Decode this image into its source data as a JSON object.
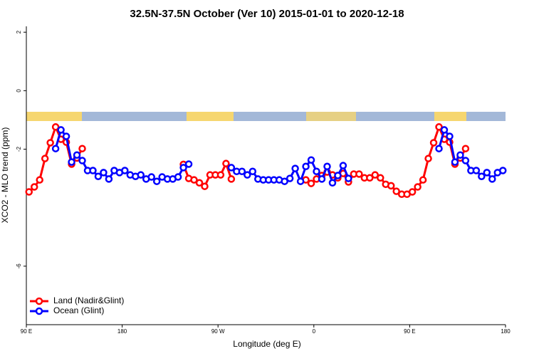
{
  "chart_data": {
    "type": "line",
    "title": "32.5N-37.5N October (Ver 10)   2015-01-01 to 2020-12-18",
    "x_label": "Longitude (deg E)",
    "y_label": "XCO2 - MLO trend (ppm)",
    "x": [
      92.5,
      97.5,
      102.5,
      107.5,
      112.5,
      117.5,
      122.5,
      127.5,
      132.5,
      137.5,
      142.5,
      147.5,
      152.5,
      157.5,
      162.5,
      167.5,
      172.5,
      177.5,
      182.5,
      187.5,
      192.5,
      197.5,
      202.5,
      207.5,
      212.5,
      217.5,
      222.5,
      227.5,
      232.5,
      237.5,
      242.5,
      247.5,
      252.5,
      257.5,
      262.5,
      267.5,
      272.5,
      277.5,
      282.5,
      287.5,
      292.5,
      297.5,
      302.5,
      307.5,
      312.5,
      317.5,
      322.5,
      327.5,
      332.5,
      337.5,
      342.5,
      347.5,
      352.5,
      357.5,
      362.5,
      367.5,
      372.5,
      377.5,
      382.5,
      387.5,
      392.5,
      397.5,
      402.5,
      407.5,
      412.5,
      417.5,
      422.5,
      427.5,
      432.5,
      437.5,
      442.5,
      447.5,
      452.5,
      457.5,
      462.5,
      467.5,
      472.5,
      477.5,
      482.5,
      487.5,
      492.5,
      497.5,
      502.5,
      507.5,
      512.5,
      517.5,
      522.5,
      527.5,
      532.5,
      537.5
    ],
    "series": [
      {
        "name": "Land (Nadir&Glint)",
        "color": "#ff0000",
        "values": [
          -3.46,
          -3.29,
          -3.05,
          -2.32,
          -1.78,
          -1.24,
          -1.66,
          -1.76,
          -2.51,
          -2.3,
          -1.98,
          null,
          null,
          null,
          null,
          null,
          null,
          null,
          null,
          null,
          null,
          null,
          null,
          null,
          null,
          null,
          null,
          null,
          null,
          -2.52,
          -3.0,
          -3.05,
          -3.15,
          -3.27,
          -2.88,
          -2.88,
          -2.88,
          -2.49,
          -3.02,
          null,
          null,
          null,
          null,
          null,
          null,
          null,
          null,
          null,
          null,
          null,
          null,
          null,
          -3.05,
          -3.17,
          -3.02,
          -2.9,
          -2.78,
          -2.88,
          -2.98,
          -2.83,
          -3.12,
          -2.85,
          -2.85,
          -2.98,
          -2.98,
          -2.88,
          -2.98,
          -3.2,
          -3.25,
          -3.44,
          -3.54,
          -3.54,
          -3.46,
          -3.29,
          -3.05,
          -2.32,
          -1.78,
          -1.24,
          -1.66,
          -1.76,
          -2.51,
          -2.3,
          -1.98,
          null,
          null,
          null,
          null,
          null,
          null,
          null
        ]
      },
      {
        "name": "Ocean (Glint)",
        "color": "#0000ff",
        "values": [
          null,
          null,
          null,
          null,
          null,
          -1.98,
          -1.34,
          -1.56,
          -2.44,
          -2.2,
          -2.39,
          -2.73,
          -2.73,
          -2.93,
          -2.8,
          -3.02,
          -2.73,
          -2.8,
          -2.73,
          -2.88,
          -2.93,
          -2.88,
          -3.02,
          -2.95,
          -3.1,
          -2.95,
          -3.02,
          -3.02,
          -2.95,
          -2.63,
          -2.51,
          null,
          null,
          null,
          null,
          null,
          null,
          null,
          -2.63,
          -2.76,
          -2.76,
          -2.88,
          -2.76,
          -3.02,
          -3.05,
          -3.05,
          -3.05,
          -3.05,
          -3.1,
          -3.0,
          -2.66,
          -3.1,
          -2.59,
          -2.37,
          -2.76,
          -3.02,
          -2.59,
          -3.15,
          -2.9,
          -2.56,
          -3.0,
          null,
          null,
          null,
          null,
          null,
          null,
          null,
          null,
          null,
          null,
          null,
          null,
          null,
          null,
          null,
          null,
          -1.98,
          -1.34,
          -1.56,
          -2.44,
          -2.2,
          -2.39,
          -2.73,
          -2.73,
          -2.93,
          -2.8,
          -3.02,
          -2.8,
          -2.73
        ]
      }
    ],
    "xlim": [
      90,
      540
    ],
    "xticks": [
      {
        "value": 90,
        "label": "90 E"
      },
      180,
      {
        "value": 270,
        "label": "90 W"
      },
      {
        "value": 360,
        "label": "0"
      },
      {
        "value": 450,
        "label": "90 E"
      },
      {
        "value": 540,
        "label": "180"
      }
    ],
    "ylim": [
      -8,
      2.2
    ],
    "yticks": [
      -6,
      -2,
      0,
      2
    ],
    "legend": "bottom-left"
  }
}
